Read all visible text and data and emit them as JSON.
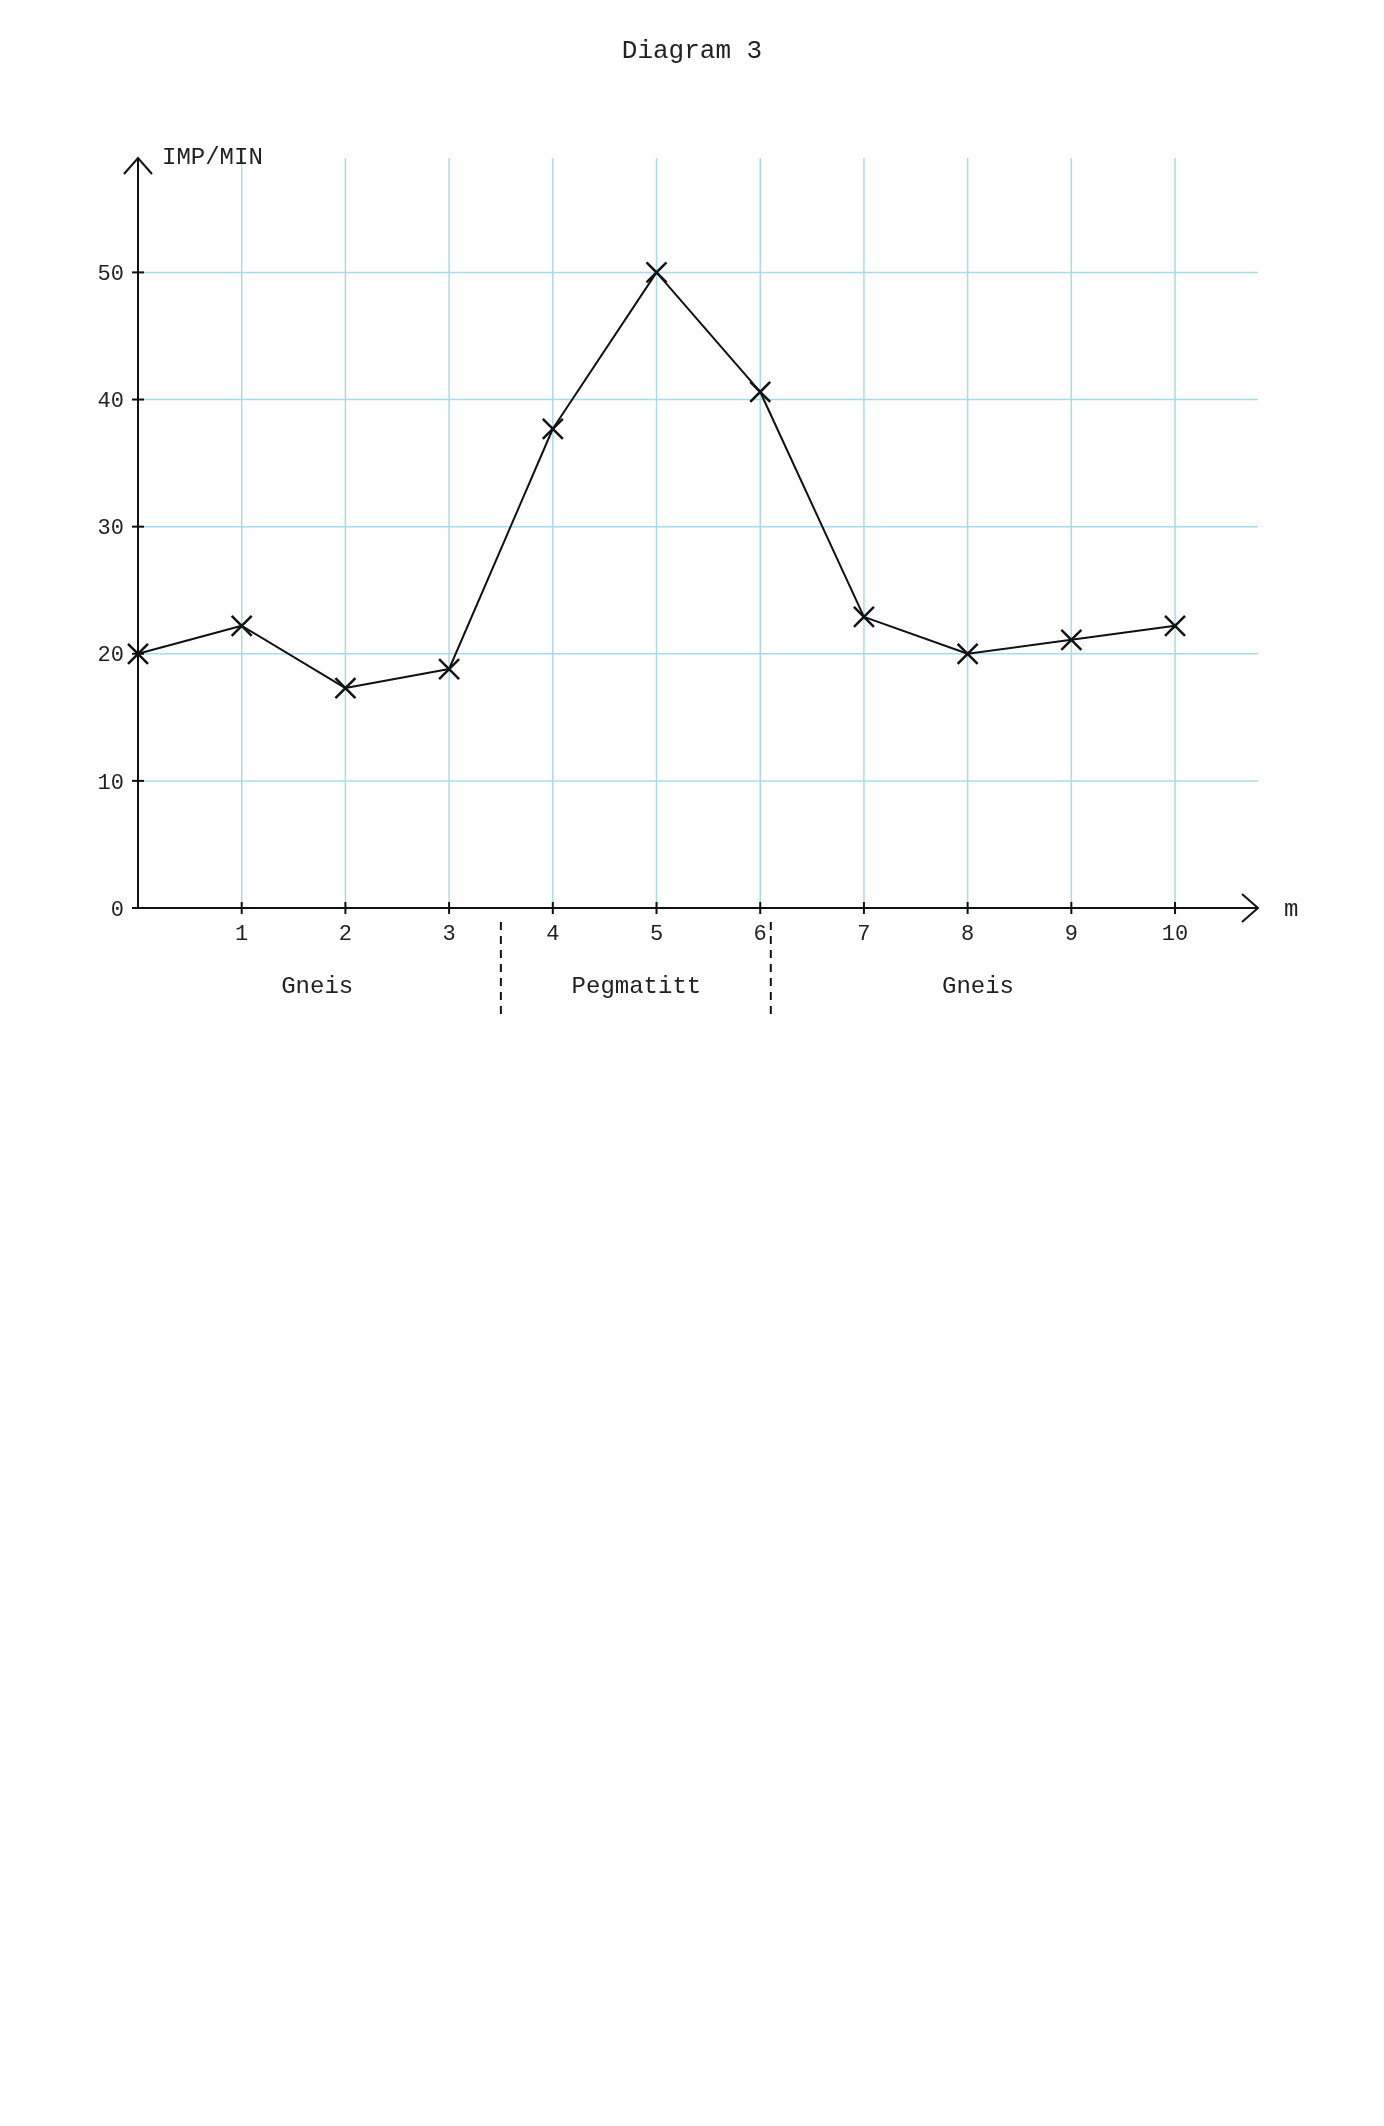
{
  "chart_data": {
    "type": "line",
    "title": "Diagram 3",
    "xlabel": "m",
    "ylabel": "IMP/MIN",
    "x": [
      0,
      1,
      2,
      3,
      4,
      5,
      6,
      7,
      8,
      9,
      10
    ],
    "series": [
      {
        "color": "#111111",
        "values": [
          20,
          22.2,
          17.3,
          18.8,
          37.7,
          50,
          40.6,
          22.9,
          20,
          21.1,
          22.2
        ]
      }
    ],
    "xlim": [
      0,
      10.8
    ],
    "xticks": [
      1,
      2,
      3,
      4,
      5,
      6,
      7,
      8,
      9,
      10
    ],
    "ylim": [
      0,
      59
    ],
    "yticks": [
      0,
      10,
      20,
      30,
      40,
      50
    ],
    "grid": true,
    "marker": "cross",
    "line_style": "solid",
    "annotations": [
      "Gneis",
      "Pegmatitt",
      "Gneis"
    ]
  }
}
